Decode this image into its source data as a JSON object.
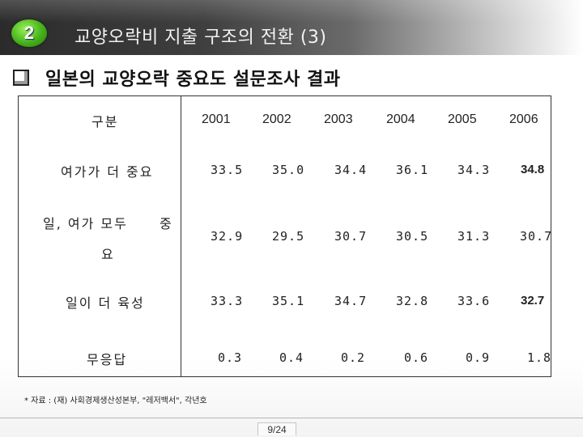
{
  "header": {
    "number": "2",
    "title": "교양오락비 지출 구조의 전환 (3)"
  },
  "subtitle": "일본의 교양오락 중요도 설문조사 결과",
  "table": {
    "corner": "구분",
    "years": [
      "2001",
      "2002",
      "2003",
      "2004",
      "2005",
      "2006"
    ],
    "rows": [
      {
        "label": "여가가 더 중요",
        "values": [
          "33.5",
          "35.0",
          "34.4",
          "36.1",
          "34.3",
          "34.8"
        ]
      },
      {
        "label_a": "일, 여가 모두",
        "label_b": "중",
        "label_c": "요",
        "values": [
          "32.9",
          "29.5",
          "30.7",
          "30.5",
          "31.3",
          "30.7"
        ]
      },
      {
        "label": "일이 더 육성",
        "values": [
          "33.3",
          "35.1",
          "34.7",
          "32.8",
          "33.6",
          "32.7"
        ]
      },
      {
        "label": "무응답",
        "values": [
          "0.3",
          "0.4",
          "0.2",
          "0.6",
          "0.9",
          "1.8"
        ]
      }
    ]
  },
  "source": "* 자료 : (재) 사회경제생산성본부, \"레저백서\", 각년호",
  "footer": {
    "page": "9/24"
  }
}
